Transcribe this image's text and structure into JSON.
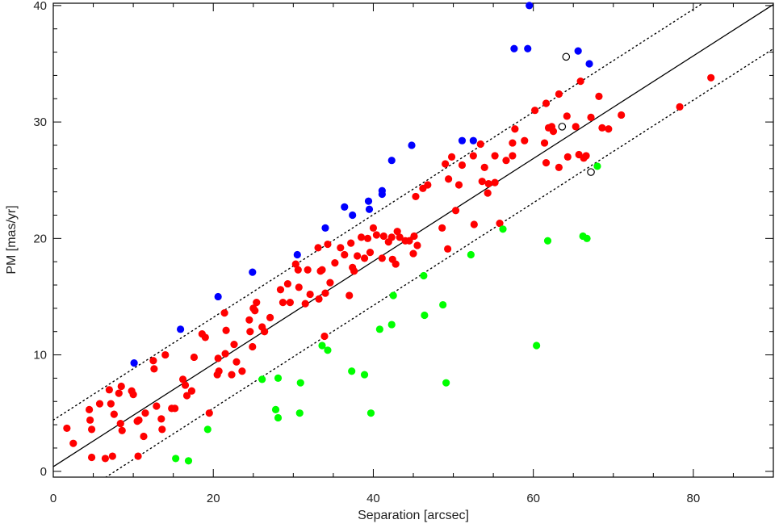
{
  "chart_data": {
    "type": "scatter",
    "title": "",
    "xlabel": "Separation [arcsec]",
    "ylabel": "PM [mas/yr]",
    "xlim": [
      0,
      90
    ],
    "ylim": [
      -0.5,
      40.2
    ],
    "xticks": [
      0,
      20,
      40,
      60,
      80
    ],
    "yticks": [
      0,
      10,
      20,
      30,
      40
    ],
    "grid": false,
    "legend": "none",
    "lines": [
      {
        "style": "solid",
        "slope": 0.441,
        "intercept": 0.4
      },
      {
        "style": "dotted",
        "slope": 0.441,
        "intercept": 4.4
      },
      {
        "style": "dotted",
        "slope": 0.441,
        "intercept": -3.4
      }
    ],
    "series": [
      {
        "color": "#ff0000",
        "marker": "filled-circle",
        "points": [
          [
            1.7,
            3.7
          ],
          [
            2.5,
            2.4
          ],
          [
            4.5,
            5.3
          ],
          [
            4.6,
            4.4
          ],
          [
            4.8,
            3.6
          ],
          [
            4.8,
            1.2
          ],
          [
            5.8,
            5.8
          ],
          [
            6.5,
            1.1
          ],
          [
            7.0,
            7.0
          ],
          [
            7.2,
            5.8
          ],
          [
            7.4,
            1.3
          ],
          [
            7.6,
            4.9
          ],
          [
            8.2,
            6.7
          ],
          [
            8.4,
            4.1
          ],
          [
            8.5,
            7.3
          ],
          [
            8.6,
            3.5
          ],
          [
            9.8,
            6.9
          ],
          [
            10.0,
            6.6
          ],
          [
            10.5,
            4.3
          ],
          [
            10.6,
            1.3
          ],
          [
            10.7,
            4.4
          ],
          [
            11.3,
            3.0
          ],
          [
            11.5,
            5.0
          ],
          [
            12.5,
            9.5
          ],
          [
            12.6,
            8.8
          ],
          [
            12.9,
            5.6
          ],
          [
            13.5,
            4.5
          ],
          [
            13.6,
            3.6
          ],
          [
            14.0,
            10.0
          ],
          [
            14.8,
            5.4
          ],
          [
            15.2,
            5.4
          ],
          [
            16.2,
            7.9
          ],
          [
            16.5,
            7.4
          ],
          [
            16.7,
            6.5
          ],
          [
            17.3,
            6.9
          ],
          [
            17.6,
            9.8
          ],
          [
            18.6,
            11.8
          ],
          [
            19.0,
            11.5
          ],
          [
            19.5,
            5.0
          ],
          [
            20.5,
            8.3
          ],
          [
            20.6,
            9.7
          ],
          [
            20.7,
            8.6
          ],
          [
            21.4,
            13.6
          ],
          [
            21.5,
            10.1
          ],
          [
            21.6,
            12.1
          ],
          [
            22.3,
            8.3
          ],
          [
            22.6,
            10.9
          ],
          [
            22.9,
            9.4
          ],
          [
            23.6,
            8.6
          ],
          [
            24.5,
            13.0
          ],
          [
            24.6,
            12.0
          ],
          [
            24.9,
            10.7
          ],
          [
            25.0,
            14.0
          ],
          [
            25.2,
            13.8
          ],
          [
            25.4,
            14.5
          ],
          [
            26.1,
            12.4
          ],
          [
            26.4,
            12.0
          ],
          [
            27.1,
            13.2
          ],
          [
            28.4,
            15.6
          ],
          [
            28.7,
            14.5
          ],
          [
            29.3,
            16.1
          ],
          [
            29.6,
            14.5
          ],
          [
            30.3,
            17.8
          ],
          [
            30.6,
            17.3
          ],
          [
            30.7,
            15.8
          ],
          [
            31.5,
            14.4
          ],
          [
            31.8,
            17.3
          ],
          [
            32.1,
            15.2
          ],
          [
            33.1,
            19.2
          ],
          [
            33.2,
            14.8
          ],
          [
            33.4,
            17.2
          ],
          [
            33.6,
            17.3
          ],
          [
            33.9,
            11.6
          ],
          [
            34.0,
            15.3
          ],
          [
            34.3,
            19.5
          ],
          [
            34.6,
            16.2
          ],
          [
            35.2,
            17.9
          ],
          [
            35.9,
            19.2
          ],
          [
            36.4,
            18.6
          ],
          [
            37.0,
            15.1
          ],
          [
            37.2,
            19.6
          ],
          [
            37.4,
            17.5
          ],
          [
            37.6,
            17.2
          ],
          [
            38.0,
            18.5
          ],
          [
            38.5,
            20.1
          ],
          [
            38.9,
            18.3
          ],
          [
            39.3,
            20.0
          ],
          [
            39.6,
            18.8
          ],
          [
            40.0,
            20.9
          ],
          [
            40.4,
            20.3
          ],
          [
            41.1,
            18.3
          ],
          [
            41.3,
            20.2
          ],
          [
            41.9,
            19.7
          ],
          [
            42.3,
            20.1
          ],
          [
            42.4,
            18.2
          ],
          [
            42.8,
            17.8
          ],
          [
            43.0,
            20.6
          ],
          [
            43.3,
            20.1
          ],
          [
            44.0,
            19.8
          ],
          [
            44.5,
            19.8
          ],
          [
            45.0,
            18.7
          ],
          [
            45.1,
            20.2
          ],
          [
            45.3,
            23.6
          ],
          [
            45.5,
            19.4
          ],
          [
            46.2,
            24.3
          ],
          [
            46.8,
            24.6
          ],
          [
            48.6,
            20.9
          ],
          [
            49.0,
            26.4
          ],
          [
            49.3,
            19.1
          ],
          [
            49.4,
            25.1
          ],
          [
            49.8,
            27.0
          ],
          [
            50.3,
            22.4
          ],
          [
            50.7,
            24.6
          ],
          [
            51.1,
            26.3
          ],
          [
            52.5,
            27.1
          ],
          [
            52.6,
            21.2
          ],
          [
            53.4,
            28.1
          ],
          [
            53.6,
            24.9
          ],
          [
            53.9,
            26.1
          ],
          [
            54.3,
            23.9
          ],
          [
            54.4,
            24.7
          ],
          [
            55.2,
            27.1
          ],
          [
            55.2,
            24.8
          ],
          [
            55.8,
            21.3
          ],
          [
            56.6,
            26.7
          ],
          [
            57.4,
            28.2
          ],
          [
            57.4,
            27.1
          ],
          [
            57.7,
            29.4
          ],
          [
            58.9,
            28.4
          ],
          [
            60.2,
            31.0
          ],
          [
            61.4,
            28.2
          ],
          [
            61.6,
            31.6
          ],
          [
            61.6,
            26.5
          ],
          [
            61.9,
            29.5
          ],
          [
            62.3,
            29.6
          ],
          [
            62.5,
            29.2
          ],
          [
            63.2,
            26.1
          ],
          [
            63.2,
            32.4
          ],
          [
            64.2,
            30.5
          ],
          [
            64.3,
            27.0
          ],
          [
            65.3,
            29.6
          ],
          [
            65.7,
            27.2
          ],
          [
            65.9,
            33.5
          ],
          [
            66.3,
            26.9
          ],
          [
            66.6,
            27.1
          ],
          [
            67.2,
            30.4
          ],
          [
            68.2,
            32.2
          ],
          [
            68.6,
            29.5
          ],
          [
            69.4,
            29.4
          ],
          [
            71.0,
            30.6
          ],
          [
            78.3,
            31.3
          ],
          [
            82.2,
            33.8
          ]
        ]
      },
      {
        "color": "#0000ff",
        "marker": "filled-circle",
        "points": [
          [
            10.1,
            9.3
          ],
          [
            15.9,
            12.2
          ],
          [
            20.6,
            15.0
          ],
          [
            24.9,
            17.1
          ],
          [
            30.5,
            18.6
          ],
          [
            34.0,
            20.9
          ],
          [
            36.4,
            22.7
          ],
          [
            37.4,
            22.0
          ],
          [
            39.4,
            23.2
          ],
          [
            39.5,
            22.5
          ],
          [
            41.1,
            23.8
          ],
          [
            41.1,
            24.1
          ],
          [
            42.3,
            26.7
          ],
          [
            44.8,
            28.0
          ],
          [
            51.1,
            28.4
          ],
          [
            52.5,
            28.4
          ],
          [
            57.6,
            36.3
          ],
          [
            59.3,
            36.3
          ],
          [
            59.5,
            40.0
          ],
          [
            65.6,
            36.1
          ],
          [
            67.0,
            35.0
          ]
        ]
      },
      {
        "color": "#00ff00",
        "marker": "filled-circle",
        "points": [
          [
            15.3,
            1.1
          ],
          [
            16.9,
            0.9
          ],
          [
            19.3,
            3.6
          ],
          [
            26.1,
            7.9
          ],
          [
            27.8,
            5.3
          ],
          [
            28.1,
            4.6
          ],
          [
            28.1,
            8.0
          ],
          [
            30.8,
            5.0
          ],
          [
            30.9,
            7.6
          ],
          [
            33.6,
            10.8
          ],
          [
            34.3,
            10.4
          ],
          [
            37.3,
            8.6
          ],
          [
            38.9,
            8.3
          ],
          [
            39.7,
            5.0
          ],
          [
            40.8,
            12.2
          ],
          [
            42.3,
            12.6
          ],
          [
            42.5,
            15.1
          ],
          [
            46.3,
            16.8
          ],
          [
            46.4,
            13.4
          ],
          [
            48.7,
            14.3
          ],
          [
            49.1,
            7.6
          ],
          [
            52.2,
            18.6
          ],
          [
            56.2,
            20.8
          ],
          [
            60.4,
            10.8
          ],
          [
            61.8,
            19.8
          ],
          [
            66.2,
            20.2
          ],
          [
            66.7,
            20.0
          ],
          [
            68.0,
            26.2
          ]
        ]
      },
      {
        "color": "#000000",
        "marker": "open-circle",
        "points": [
          [
            64.1,
            35.6
          ],
          [
            63.6,
            29.6
          ],
          [
            67.2,
            25.7
          ]
        ]
      }
    ]
  }
}
